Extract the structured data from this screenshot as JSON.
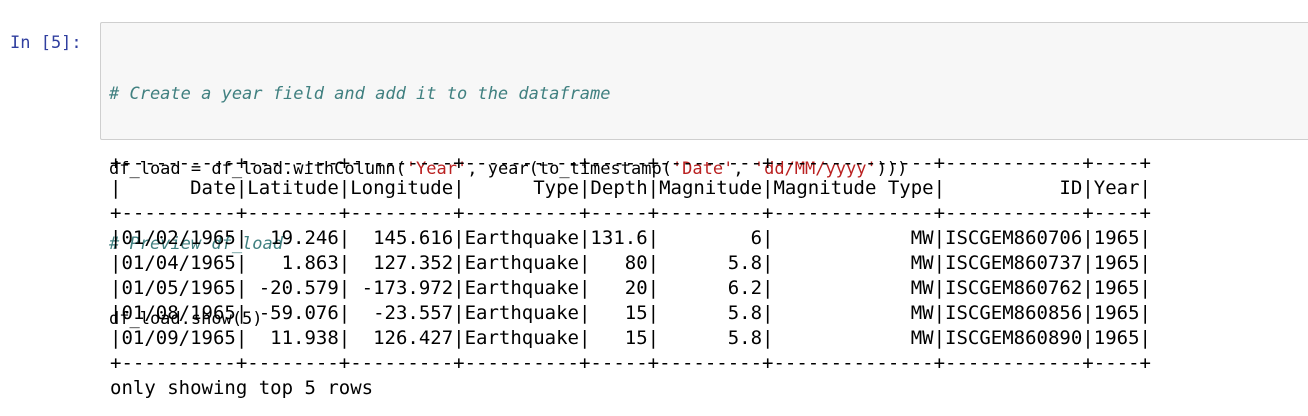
{
  "cell": {
    "prompt": "In [5]:",
    "code": {
      "lines": [
        [
          "# Create a year field and add it to the dataframe"
        ],
        [
          "df_load = df_load.withColumn(",
          "'Year'",
          ", year(to_timestamp(",
          "'Date'",
          ", ",
          "'dd/MM/yyyy'",
          ")))"
        ],
        [
          "# Preview df_load"
        ],
        [
          "df_load.show(5)"
        ]
      ]
    },
    "output": {
      "lines": [
        "+----------+--------+---------+----------+-----+---------+--------------+------------+----+",
        "|      Date|Latitude|Longitude|      Type|Depth|Magnitude|Magnitude Type|          ID|Year|",
        "+----------+--------+---------+----------+-----+---------+--------------+------------+----+",
        "|01/02/1965|  19.246|  145.616|Earthquake|131.6|        6|            MW|ISCGEM860706|1965|",
        "|01/04/1965|   1.863|  127.352|Earthquake|   80|      5.8|            MW|ISCGEM860737|1965|",
        "|01/05/1965| -20.579| -173.972|Earthquake|   20|      6.2|            MW|ISCGEM860762|1965|",
        "|01/08/1965| -59.076|  -23.557|Earthquake|   15|      5.8|            MW|ISCGEM860856|1965|",
        "|01/09/1965|  11.938|  126.427|Earthquake|   15|      5.8|            MW|ISCGEM860890|1965|",
        "+----------+--------+---------+----------+-----+---------+--------------+------------+----+",
        "only showing top 5 rows"
      ]
    }
  }
}
